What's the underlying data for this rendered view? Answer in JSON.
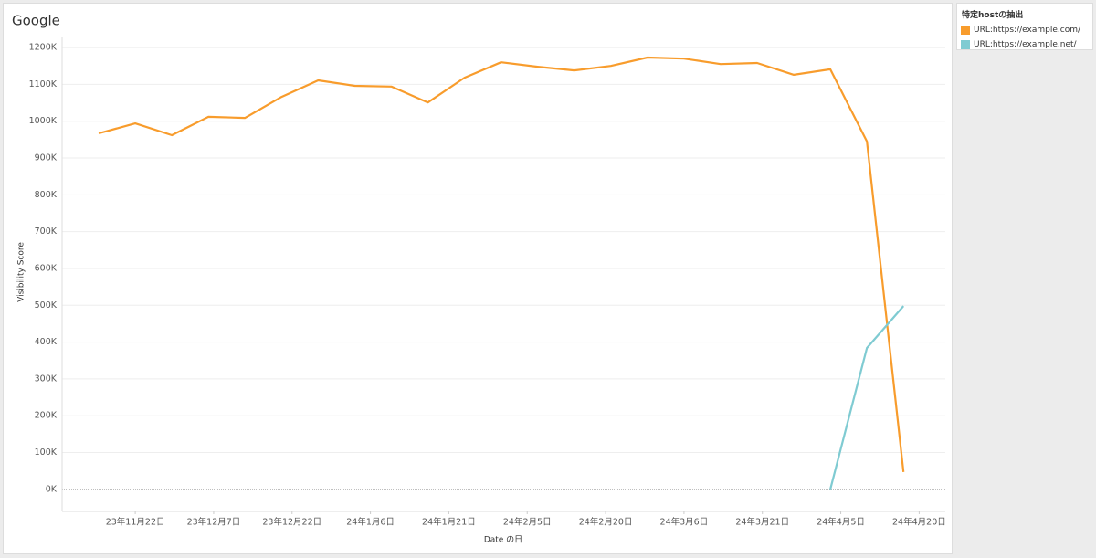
{
  "chart_data": {
    "type": "line",
    "title": "Google",
    "x_label": "Date の日",
    "y_label": "Visibility Score",
    "legend_title": "特定hostの抽出",
    "legend_position": "top-right",
    "grid": true,
    "x": [
      "2023-11-15",
      "2023-11-22",
      "2023-11-29",
      "2023-12-06",
      "2023-12-13",
      "2023-12-20",
      "2023-12-27",
      "2024-01-03",
      "2024-01-10",
      "2024-01-17",
      "2024-01-24",
      "2024-01-31",
      "2024-02-07",
      "2024-02-14",
      "2024-02-21",
      "2024-02-28",
      "2024-03-06",
      "2024-03-13",
      "2024-03-20",
      "2024-03-27",
      "2024-04-03",
      "2024-04-10",
      "2024-04-17"
    ],
    "xlim": [
      "2023-11-08",
      "2024-04-25"
    ],
    "xticks": [
      {
        "value": "2023-11-22",
        "label": "23年11月22日"
      },
      {
        "value": "2023-12-07",
        "label": "23年12月7日"
      },
      {
        "value": "2023-12-22",
        "label": "23年12月22日"
      },
      {
        "value": "2024-01-06",
        "label": "24年1月6日"
      },
      {
        "value": "2024-01-21",
        "label": "24年1月21日"
      },
      {
        "value": "2024-02-05",
        "label": "24年2月5日"
      },
      {
        "value": "2024-02-20",
        "label": "24年2月20日"
      },
      {
        "value": "2024-03-06",
        "label": "24年3月6日"
      },
      {
        "value": "2024-03-21",
        "label": "24年3月21日"
      },
      {
        "value": "2024-04-05",
        "label": "24年4月5日"
      },
      {
        "value": "2024-04-20",
        "label": "24年4月20日"
      }
    ],
    "ylim": [
      -60000,
      1230000
    ],
    "yticks": [
      {
        "value": 0,
        "label": "0K"
      },
      {
        "value": 100000,
        "label": "100K"
      },
      {
        "value": 200000,
        "label": "200K"
      },
      {
        "value": 300000,
        "label": "300K"
      },
      {
        "value": 400000,
        "label": "400K"
      },
      {
        "value": 500000,
        "label": "500K"
      },
      {
        "value": 600000,
        "label": "600K"
      },
      {
        "value": 700000,
        "label": "700K"
      },
      {
        "value": 800000,
        "label": "800K"
      },
      {
        "value": 900000,
        "label": "900K"
      },
      {
        "value": 1000000,
        "label": "1000K"
      },
      {
        "value": 1100000,
        "label": "1100K"
      },
      {
        "value": 1200000,
        "label": "1200K"
      }
    ],
    "series": [
      {
        "name": "URL:https://example.com/",
        "color": "#f89c2c",
        "values": [
          967000,
          994000,
          962000,
          1012000,
          1009000,
          1066000,
          1111000,
          1096000,
          1094000,
          1051000,
          1118000,
          1160000,
          1148000,
          1138000,
          1150000,
          1173000,
          1170000,
          1155000,
          1158000,
          1126000,
          1141000,
          945000,
          47000
        ]
      },
      {
        "name": "URL:https://example.net/",
        "color": "#7fcbd2",
        "values": [
          null,
          null,
          null,
          null,
          null,
          null,
          null,
          null,
          null,
          null,
          null,
          null,
          null,
          null,
          null,
          null,
          null,
          null,
          null,
          null,
          0,
          384000,
          498000
        ]
      }
    ]
  }
}
